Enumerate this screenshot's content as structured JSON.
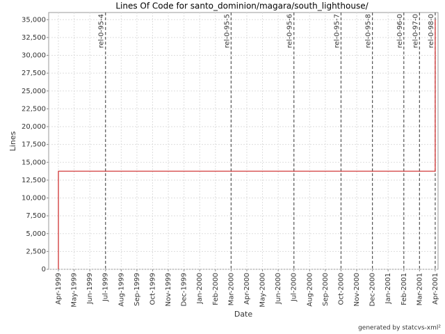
{
  "chart_data": {
    "type": "line",
    "title": "Lines Of Code for santo_dominion/magara/south_lighthouse/",
    "x_label": "Date",
    "y_label": "Lines",
    "footer": "generated by statcvs-xml²",
    "xticks": [
      "Apr-1999",
      "May-1999",
      "Jun-1999",
      "Jul-1999",
      "Aug-1999",
      "Sep-1999",
      "Oct-1999",
      "Nov-1999",
      "Dec-1999",
      "Jan-2000",
      "Feb-2000",
      "Mar-2000",
      "Apr-2000",
      "May-2000",
      "Jun-2000",
      "Jul-2000",
      "Aug-2000",
      "Sep-2000",
      "Oct-2000",
      "Nov-2000",
      "Dec-2000",
      "Jan-2001",
      "Feb-2001",
      "Mar-2001",
      "Apr-2001"
    ],
    "x": [
      "Apr-1999",
      "Apr-1999",
      "Apr-2001",
      "Apr-2001"
    ],
    "values": [
      0,
      13750,
      13750,
      35000
    ],
    "color": "#cc2222",
    "ylim": [
      0,
      36000
    ],
    "yticks": [
      0,
      {
        "value": 2500,
        "label": "2,500"
      },
      {
        "value": 5000,
        "label": "5,000"
      },
      {
        "value": 7500,
        "label": "7,500"
      },
      {
        "value": 10000,
        "label": "10,000"
      },
      {
        "value": 12500,
        "label": "12,500"
      },
      {
        "value": 15000,
        "label": "15,000"
      },
      {
        "value": 17500,
        "label": "17,500"
      },
      {
        "value": 20000,
        "label": "20,000"
      },
      {
        "value": 22500,
        "label": "22,500"
      },
      {
        "value": 25000,
        "label": "25,000"
      },
      {
        "value": 27500,
        "label": "27,500"
      },
      {
        "value": 30000,
        "label": "30,000"
      },
      {
        "value": 32500,
        "label": "32,500"
      },
      {
        "value": 35000,
        "label": "35,000"
      }
    ],
    "grid": true,
    "annotations": [
      {
        "x": "Jul-1999",
        "label": "rel-0-95-4"
      },
      {
        "x": "Mar-2000",
        "label": "rel-0-95-5"
      },
      {
        "x": "Jul-2000",
        "label": "rel-0-95-6"
      },
      {
        "x": "Oct-2000",
        "label": "rel-0-95-7"
      },
      {
        "x": "Dec-2000",
        "label": "rel-0-95-8"
      },
      {
        "x": "Feb-2001",
        "label": "rel-0-96-0"
      },
      {
        "x": "Mar-2001",
        "label": "rel-0-97-0"
      },
      {
        "x": "Apr-2001",
        "label": "rel-0-98-0"
      }
    ]
  }
}
